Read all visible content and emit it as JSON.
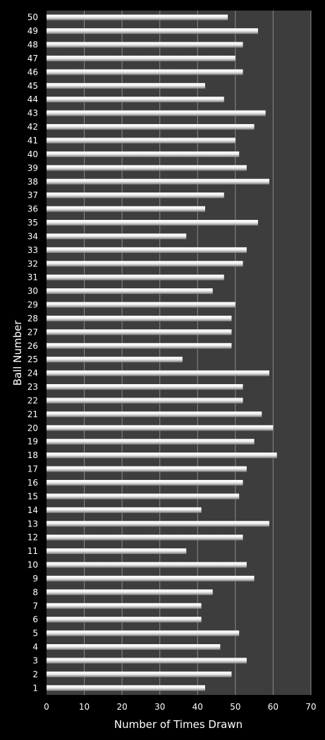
{
  "chart_data": {
    "type": "bar",
    "orientation": "horizontal",
    "xlabel": "Number of Times Drawn",
    "ylabel": "Ball Number",
    "xlim": [
      0,
      70
    ],
    "xticks": [
      0,
      10,
      20,
      30,
      40,
      50,
      60,
      70
    ],
    "grid": true,
    "categories": [
      "1",
      "2",
      "3",
      "4",
      "5",
      "6",
      "7",
      "8",
      "9",
      "10",
      "11",
      "12",
      "13",
      "14",
      "15",
      "16",
      "17",
      "18",
      "19",
      "20",
      "21",
      "22",
      "23",
      "24",
      "25",
      "26",
      "27",
      "28",
      "29",
      "30",
      "31",
      "32",
      "33",
      "34",
      "35",
      "36",
      "37",
      "38",
      "39",
      "40",
      "41",
      "42",
      "43",
      "44",
      "45",
      "46",
      "47",
      "48",
      "49",
      "50"
    ],
    "values": [
      42,
      49,
      53,
      46,
      51,
      41,
      41,
      44,
      55,
      53,
      37,
      52,
      59,
      41,
      51,
      52,
      53,
      61,
      55,
      60,
      57,
      52,
      52,
      59,
      36,
      49,
      49,
      49,
      50,
      44,
      47,
      52,
      53,
      37,
      56,
      42,
      47,
      59,
      53,
      51,
      50,
      55,
      58,
      47,
      42,
      52,
      50,
      52,
      56,
      48
    ],
    "colors": {
      "background": "#000000",
      "plot_area": "#3d3d3d",
      "bar": "#e4e4e4",
      "gridline": "#8a8a8a",
      "text": "#ffffff"
    }
  }
}
